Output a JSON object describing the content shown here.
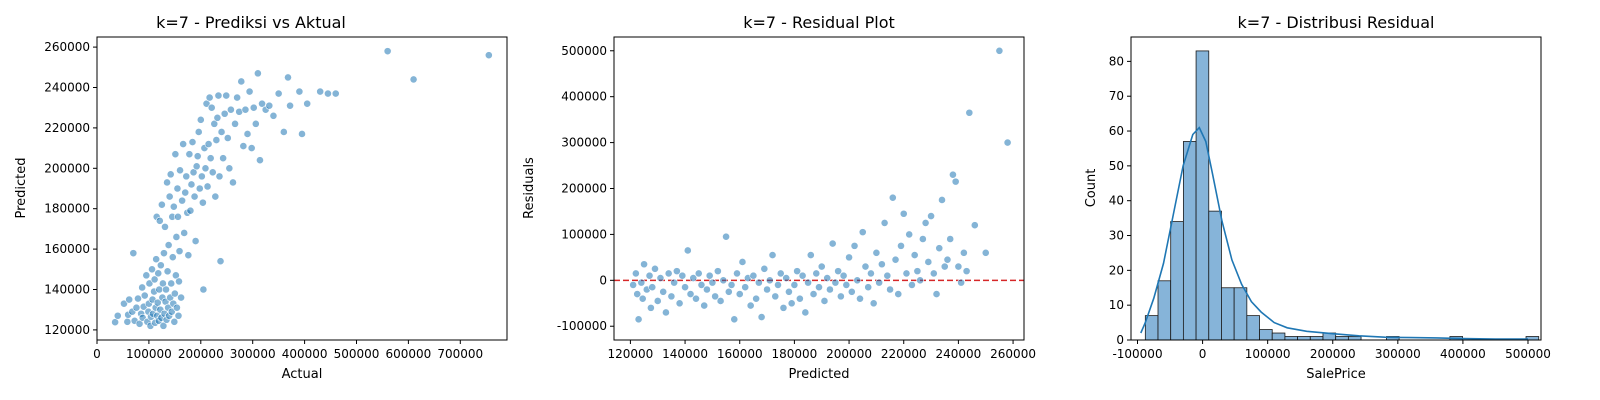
{
  "colors": {
    "point_fill": "#1f77b4",
    "bar_fill": "#86b4d9",
    "kde_line": "#1f77b4",
    "zero_line": "#d62728"
  },
  "chart_data": [
    {
      "type": "scatter",
      "title": "k=7 - Prediksi vs Aktual",
      "xlabel": "Actual",
      "ylabel": "Predicted",
      "xlim": [
        0,
        790000
      ],
      "ylim": [
        115000,
        265000
      ],
      "xticks": [
        0,
        100000,
        200000,
        300000,
        400000,
        500000,
        600000,
        700000
      ],
      "yticks": [
        120000,
        140000,
        160000,
        180000,
        200000,
        220000,
        240000,
        260000
      ],
      "points": [
        [
          34900,
          123800
        ],
        [
          40000,
          127000
        ],
        [
          52000,
          133000
        ],
        [
          58500,
          124000
        ],
        [
          60000,
          127500
        ],
        [
          62000,
          135000
        ],
        [
          68000,
          129000
        ],
        [
          70000,
          158000
        ],
        [
          72500,
          124500
        ],
        [
          76000,
          131000
        ],
        [
          79000,
          135500
        ],
        [
          82000,
          123000
        ],
        [
          85000,
          128000
        ],
        [
          87000,
          141000
        ],
        [
          88000,
          126000
        ],
        [
          90000,
          131500
        ],
        [
          92000,
          137000
        ],
        [
          95000,
          147000
        ],
        [
          97000,
          124000
        ],
        [
          99000,
          129000
        ],
        [
          100000,
          133000
        ],
        [
          101000,
          143000
        ],
        [
          103000,
          122000
        ],
        [
          104000,
          126500
        ],
        [
          106000,
          150000
        ],
        [
          107000,
          135000
        ],
        [
          108000,
          128000
        ],
        [
          110000,
          139000
        ],
        [
          111000,
          145000
        ],
        [
          112000,
          123500
        ],
        [
          113000,
          131000
        ],
        [
          114000,
          155000
        ],
        [
          115000,
          176000
        ],
        [
          116000,
          127000
        ],
        [
          117000,
          133500
        ],
        [
          118000,
          148000
        ],
        [
          119000,
          124500
        ],
        [
          120000,
          140000
        ],
        [
          121000,
          174000
        ],
        [
          122000,
          130000
        ],
        [
          123000,
          152000
        ],
        [
          124000,
          126000
        ],
        [
          125000,
          182000
        ],
        [
          126000,
          136000
        ],
        [
          127000,
          143000
        ],
        [
          128000,
          122000
        ],
        [
          129000,
          158000
        ],
        [
          130000,
          128000
        ],
        [
          131000,
          171000
        ],
        [
          132000,
          134000
        ],
        [
          133000,
          140000
        ],
        [
          134000,
          125000
        ],
        [
          135000,
          193000
        ],
        [
          136000,
          149000
        ],
        [
          137000,
          131000
        ],
        [
          138000,
          162000
        ],
        [
          139000,
          127000
        ],
        [
          140000,
          186000
        ],
        [
          141000,
          136000
        ],
        [
          142000,
          197000
        ],
        [
          143000,
          143000
        ],
        [
          144000,
          129000
        ],
        [
          145000,
          176000
        ],
        [
          146000,
          156000
        ],
        [
          147000,
          133000
        ],
        [
          148000,
          181000
        ],
        [
          149000,
          124000
        ],
        [
          150000,
          138000
        ],
        [
          151000,
          207000
        ],
        [
          152000,
          147000
        ],
        [
          153000,
          166000
        ],
        [
          154000,
          131000
        ],
        [
          155000,
          190000
        ],
        [
          156000,
          176000
        ],
        [
          157000,
          127000
        ],
        [
          158000,
          144000
        ],
        [
          159000,
          159000
        ],
        [
          160000,
          199000
        ],
        [
          162000,
          136000
        ],
        [
          164000,
          184000
        ],
        [
          166000,
          212000
        ],
        [
          168000,
          168000
        ],
        [
          170000,
          188000
        ],
        [
          172000,
          196000
        ],
        [
          174000,
          178000
        ],
        [
          176000,
          157000
        ],
        [
          178000,
          207000
        ],
        [
          180000,
          179000
        ],
        [
          182000,
          192000
        ],
        [
          184000,
          213000
        ],
        [
          186000,
          198000
        ],
        [
          188000,
          186000
        ],
        [
          190000,
          164000
        ],
        [
          192000,
          201000
        ],
        [
          194000,
          206000
        ],
        [
          196000,
          218000
        ],
        [
          198000,
          190000
        ],
        [
          200000,
          224000
        ],
        [
          202000,
          196000
        ],
        [
          204000,
          183000
        ],
        [
          205000,
          140000
        ],
        [
          207000,
          210000
        ],
        [
          209000,
          200000
        ],
        [
          211000,
          232000
        ],
        [
          213000,
          191000
        ],
        [
          215000,
          212000
        ],
        [
          217000,
          235000
        ],
        [
          219000,
          205000
        ],
        [
          221000,
          230000
        ],
        [
          223000,
          198000
        ],
        [
          226000,
          222000
        ],
        [
          228000,
          186000
        ],
        [
          230000,
          214000
        ],
        [
          232000,
          225000
        ],
        [
          234000,
          236000
        ],
        [
          236000,
          196000
        ],
        [
          238000,
          154000
        ],
        [
          240000,
          218000
        ],
        [
          243000,
          205000
        ],
        [
          246000,
          227000
        ],
        [
          249000,
          236000
        ],
        [
          252000,
          215000
        ],
        [
          255000,
          200000
        ],
        [
          258000,
          229000
        ],
        [
          262000,
          193000
        ],
        [
          266000,
          222000
        ],
        [
          270000,
          235000
        ],
        [
          274000,
          228000
        ],
        [
          278000,
          243000
        ],
        [
          282000,
          211000
        ],
        [
          286000,
          229000
        ],
        [
          290000,
          217000
        ],
        [
          294000,
          238000
        ],
        [
          298000,
          210000
        ],
        [
          302000,
          230000
        ],
        [
          306000,
          222000
        ],
        [
          310000,
          247000
        ],
        [
          314000,
          204000
        ],
        [
          318000,
          232000
        ],
        [
          325000,
          229000
        ],
        [
          332000,
          231000
        ],
        [
          340000,
          226000
        ],
        [
          350000,
          237000
        ],
        [
          360000,
          218000
        ],
        [
          368000,
          245000
        ],
        [
          372000,
          231000
        ],
        [
          390000,
          238000
        ],
        [
          395000,
          217000
        ],
        [
          405000,
          232000
        ],
        [
          430000,
          238000
        ],
        [
          445000,
          237000
        ],
        [
          460000,
          237000
        ],
        [
          560000,
          258000
        ],
        [
          610000,
          244000
        ],
        [
          755000,
          256000
        ]
      ]
    },
    {
      "type": "scatter",
      "title": "k=7 - Residual Plot",
      "xlabel": "Predicted",
      "ylabel": "Residuals",
      "xlim": [
        114000,
        264000
      ],
      "ylim": [
        -130000,
        530000
      ],
      "xticks": [
        120000,
        140000,
        160000,
        180000,
        200000,
        220000,
        240000,
        260000
      ],
      "yticks": [
        -100000,
        0,
        100000,
        200000,
        300000,
        400000,
        500000
      ],
      "hline": 0,
      "points": [
        [
          121000,
          -10000
        ],
        [
          122000,
          15000
        ],
        [
          122500,
          -30000
        ],
        [
          123000,
          -85000
        ],
        [
          124000,
          -5000
        ],
        [
          124500,
          -40000
        ],
        [
          125000,
          35000
        ],
        [
          126000,
          -20000
        ],
        [
          127000,
          10000
        ],
        [
          127500,
          -60000
        ],
        [
          128000,
          -15000
        ],
        [
          129000,
          25000
        ],
        [
          130000,
          -45000
        ],
        [
          131000,
          5000
        ],
        [
          132000,
          -25000
        ],
        [
          133000,
          -70000
        ],
        [
          134000,
          15000
        ],
        [
          135000,
          -35000
        ],
        [
          136000,
          -5000
        ],
        [
          137000,
          20000
        ],
        [
          138000,
          -50000
        ],
        [
          139000,
          10000
        ],
        [
          140000,
          -15000
        ],
        [
          141000,
          65000
        ],
        [
          142000,
          -30000
        ],
        [
          143000,
          5000
        ],
        [
          144000,
          -40000
        ],
        [
          145000,
          15000
        ],
        [
          146000,
          -10000
        ],
        [
          147000,
          -55000
        ],
        [
          148000,
          -20000
        ],
        [
          149000,
          10000
        ],
        [
          150000,
          -5000
        ],
        [
          151000,
          -35000
        ],
        [
          152000,
          20000
        ],
        [
          153000,
          -45000
        ],
        [
          154000,
          0
        ],
        [
          155000,
          95000
        ],
        [
          156000,
          -25000
        ],
        [
          157000,
          -10000
        ],
        [
          158000,
          -85000
        ],
        [
          159000,
          15000
        ],
        [
          160000,
          -30000
        ],
        [
          161000,
          40000
        ],
        [
          162000,
          -15000
        ],
        [
          163000,
          5000
        ],
        [
          164000,
          -55000
        ],
        [
          165000,
          10000
        ],
        [
          166000,
          -40000
        ],
        [
          167000,
          -5000
        ],
        [
          168000,
          -80000
        ],
        [
          169000,
          25000
        ],
        [
          170000,
          -20000
        ],
        [
          171000,
          0
        ],
        [
          172000,
          55000
        ],
        [
          173000,
          -35000
        ],
        [
          174000,
          -10000
        ],
        [
          175000,
          15000
        ],
        [
          176000,
          -60000
        ],
        [
          177000,
          5000
        ],
        [
          178000,
          -25000
        ],
        [
          179000,
          -50000
        ],
        [
          180000,
          -10000
        ],
        [
          181000,
          20000
        ],
        [
          182000,
          -40000
        ],
        [
          183000,
          10000
        ],
        [
          184000,
          -70000
        ],
        [
          185000,
          -5000
        ],
        [
          186000,
          55000
        ],
        [
          187000,
          -30000
        ],
        [
          188000,
          15000
        ],
        [
          189000,
          -15000
        ],
        [
          190000,
          30000
        ],
        [
          191000,
          -45000
        ],
        [
          192000,
          5000
        ],
        [
          193000,
          -20000
        ],
        [
          194000,
          80000
        ],
        [
          195000,
          -5000
        ],
        [
          196000,
          20000
        ],
        [
          197000,
          -35000
        ],
        [
          198000,
          10000
        ],
        [
          199000,
          -10000
        ],
        [
          200000,
          50000
        ],
        [
          201000,
          -25000
        ],
        [
          202000,
          75000
        ],
        [
          203000,
          0
        ],
        [
          204000,
          -40000
        ],
        [
          205000,
          105000
        ],
        [
          206000,
          30000
        ],
        [
          207000,
          -15000
        ],
        [
          208000,
          15000
        ],
        [
          209000,
          -50000
        ],
        [
          210000,
          60000
        ],
        [
          211000,
          -5000
        ],
        [
          212000,
          35000
        ],
        [
          213000,
          125000
        ],
        [
          214000,
          10000
        ],
        [
          215000,
          -20000
        ],
        [
          216000,
          180000
        ],
        [
          217000,
          45000
        ],
        [
          218000,
          -30000
        ],
        [
          219000,
          75000
        ],
        [
          220000,
          145000
        ],
        [
          221000,
          15000
        ],
        [
          222000,
          100000
        ],
        [
          223000,
          -10000
        ],
        [
          224000,
          55000
        ],
        [
          225000,
          20000
        ],
        [
          226000,
          0
        ],
        [
          227000,
          90000
        ],
        [
          228000,
          125000
        ],
        [
          229000,
          40000
        ],
        [
          230000,
          140000
        ],
        [
          231000,
          15000
        ],
        [
          232000,
          -30000
        ],
        [
          233000,
          70000
        ],
        [
          234000,
          175000
        ],
        [
          235000,
          30000
        ],
        [
          236000,
          45000
        ],
        [
          237000,
          90000
        ],
        [
          238000,
          230000
        ],
        [
          239000,
          215000
        ],
        [
          240000,
          30000
        ],
        [
          241000,
          -5000
        ],
        [
          242000,
          60000
        ],
        [
          243000,
          20000
        ],
        [
          244000,
          365000
        ],
        [
          246000,
          120000
        ],
        [
          250000,
          60000
        ],
        [
          255000,
          500000
        ],
        [
          258000,
          300000
        ]
      ]
    },
    {
      "type": "bar",
      "title": "k=7 - Distribusi Residual",
      "xlabel": "SalePrice",
      "ylabel": "Count",
      "xlim": [
        -110000,
        520000
      ],
      "ylim": [
        0,
        87
      ],
      "xticks": [
        -100000,
        0,
        100000,
        200000,
        300000,
        400000,
        500000
      ],
      "yticks": [
        0,
        10,
        20,
        30,
        40,
        50,
        60,
        70,
        80
      ],
      "bin_start": -88000,
      "bin_width": 19500,
      "values": [
        7,
        17,
        34,
        57,
        83,
        37,
        15,
        15,
        7,
        3,
        2,
        1,
        1,
        1,
        2,
        1,
        1,
        0,
        0,
        1,
        0,
        0,
        0,
        0,
        1,
        0,
        0,
        0,
        0,
        0,
        1
      ],
      "kde": [
        [
          -95000,
          2
        ],
        [
          -88000,
          5
        ],
        [
          -75000,
          12
        ],
        [
          -60000,
          22
        ],
        [
          -45000,
          36
        ],
        [
          -30000,
          50
        ],
        [
          -15000,
          59
        ],
        [
          -5000,
          61
        ],
        [
          5000,
          57
        ],
        [
          15000,
          48
        ],
        [
          30000,
          34
        ],
        [
          45000,
          23
        ],
        [
          60000,
          16
        ],
        [
          75000,
          11
        ],
        [
          90000,
          8
        ],
        [
          110000,
          5
        ],
        [
          130000,
          3.5
        ],
        [
          160000,
          2.5
        ],
        [
          200000,
          1.8
        ],
        [
          240000,
          1.2
        ],
        [
          280000,
          0.8
        ],
        [
          320000,
          0.7
        ],
        [
          360000,
          0.6
        ],
        [
          400000,
          0.4
        ],
        [
          450000,
          0.3
        ],
        [
          500000,
          0.3
        ]
      ]
    }
  ]
}
